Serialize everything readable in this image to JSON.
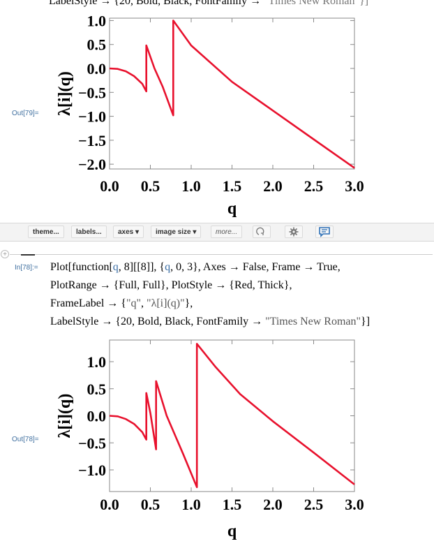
{
  "top_clipped_line": {
    "prefix": "LabelStyle → {20, Bold, Black, FontFamily → ",
    "string": "\"Times New Roman\"}]"
  },
  "plots": [
    {
      "out_label": "Out[79]=",
      "xlabel": "q",
      "ylabel": "λ[i](q)",
      "xticks": [
        "0.0",
        "0.5",
        "1.0",
        "1.5",
        "2.0",
        "2.5",
        "3.0"
      ],
      "yticks": [
        "1.0",
        "0.5",
        "0.0",
        "−0.5",
        "−1.0",
        "−1.5",
        "−2.0"
      ]
    },
    {
      "out_label": "Out[78]=",
      "xlabel": "q",
      "ylabel": "λ[i](q)",
      "xticks": [
        "0.0",
        "0.5",
        "1.0",
        "1.5",
        "2.0",
        "2.5",
        "3.0"
      ],
      "yticks": [
        "1.0",
        "0.5",
        "0.0",
        "−0.5",
        "−1.0"
      ]
    }
  ],
  "toolbar": {
    "theme": "theme...",
    "labels": "labels...",
    "axes": "axes ▾",
    "image_size": "image size ▾",
    "more": "more...",
    "icons": [
      "undo-spiral-icon",
      "gear-icon",
      "comment-icon"
    ]
  },
  "input_cell": {
    "in_label": "In[78]:=",
    "line1_a": "Plot[function[",
    "line1_q": "q",
    "line1_b": ", 8][[8]], {",
    "line1_q2": "q",
    "line1_c": ", 0, 3}, Axes → False, Frame → True,",
    "line2": "PlotRange → {Full, Full}, PlotStyle → {Red, Thick},",
    "line3_a": "FrameLabel → {",
    "line3_s1": "\"q\"",
    "line3_b": ", ",
    "line3_s2": "\"λ[i](q)\"",
    "line3_c": "},",
    "line4_a": "LabelStyle → {20, Bold, Black, FontFamily → ",
    "line4_s": "\"Times New Roman\"",
    "line4_b": "}]"
  },
  "chart_data": [
    {
      "type": "line",
      "xlabel": "q",
      "ylabel": "λ[i](q)",
      "xlim": [
        0,
        3
      ],
      "ylim": [
        -2.1,
        1.05
      ],
      "color": "#e8112d",
      "series": [
        {
          "points": [
            [
              0.0,
              0.0
            ],
            [
              0.1,
              -0.01
            ],
            [
              0.2,
              -0.06
            ],
            [
              0.3,
              -0.16
            ],
            [
              0.4,
              -0.32
            ],
            [
              0.45,
              -0.48
            ],
            [
              0.45,
              0.48
            ],
            [
              0.55,
              0.0
            ],
            [
              0.65,
              -0.38
            ],
            [
              0.78,
              -0.98
            ],
            [
              0.78,
              1.0
            ],
            [
              1.0,
              0.48
            ],
            [
              1.5,
              -0.28
            ],
            [
              2.0,
              -0.88
            ],
            [
              2.5,
              -1.48
            ],
            [
              3.0,
              -2.08
            ]
          ]
        }
      ]
    },
    {
      "type": "line",
      "xlabel": "q",
      "ylabel": "λ[i](q)",
      "xlim": [
        0,
        3
      ],
      "ylim": [
        -1.4,
        1.4
      ],
      "color": "#e8112d",
      "series": [
        {
          "points": [
            [
              0.0,
              0.0
            ],
            [
              0.1,
              -0.01
            ],
            [
              0.2,
              -0.06
            ],
            [
              0.3,
              -0.15
            ],
            [
              0.4,
              -0.3
            ],
            [
              0.45,
              -0.44
            ],
            [
              0.45,
              0.42
            ],
            [
              0.5,
              0.05
            ],
            [
              0.57,
              -0.62
            ],
            [
              0.57,
              0.64
            ],
            [
              0.7,
              0.0
            ],
            [
              0.9,
              -0.7
            ],
            [
              1.07,
              -1.32
            ],
            [
              1.07,
              1.33
            ],
            [
              1.3,
              0.9
            ],
            [
              1.6,
              0.4
            ],
            [
              2.0,
              -0.1
            ],
            [
              2.5,
              -0.68
            ],
            [
              3.0,
              -1.27
            ]
          ]
        }
      ]
    }
  ]
}
